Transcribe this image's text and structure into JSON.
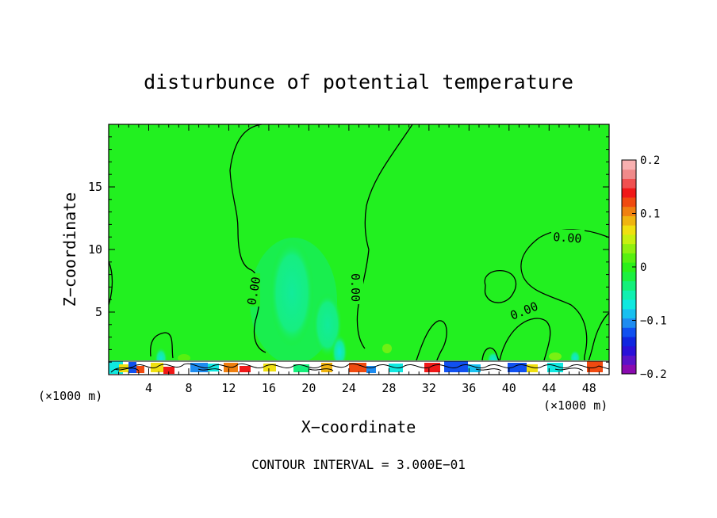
{
  "chart_data": {
    "type": "heatmap",
    "title": "disturbunce of potential temperature",
    "xlabel": "X−coordinate",
    "ylabel": "Z−coordinate",
    "x_unit_left": "(×1000 m)",
    "x_unit_right": "(×1000 m)",
    "xlim": [
      0,
      50
    ],
    "ylim": [
      0,
      20
    ],
    "xticks": [
      4,
      8,
      12,
      16,
      20,
      24,
      28,
      32,
      36,
      40,
      44,
      48
    ],
    "yticks": [
      5,
      10,
      15
    ],
    "footer": "CONTOUR INTERVAL = 3.000E−01",
    "contour_label": "0.00",
    "colorbar": {
      "min": -0.2,
      "max": 0.2,
      "tick_labels": [
        "0.2",
        "0.1",
        "0",
        "−0.1",
        "−0.2"
      ],
      "tick_values": [
        0.2,
        0.1,
        0,
        -0.1,
        -0.2
      ],
      "colors": [
        "#8a0ab0",
        "#5a12c8",
        "#2a10d8",
        "#1026e0",
        "#1050f0",
        "#1e8cf0",
        "#18c0f0",
        "#10e8e0",
        "#10f0b0",
        "#14f07a",
        "#1cf040",
        "#2cf018",
        "#58f010",
        "#90f010",
        "#c8f010",
        "#f0e010",
        "#f0b410",
        "#f08010",
        "#f04a10",
        "#f01818",
        "#f05050",
        "#f08a8a",
        "#f8b0b0"
      ]
    },
    "field_annotations": [
      {
        "label": "0.00",
        "x": 14.2,
        "z": 7.0
      },
      {
        "label": "0.00",
        "x": 24.5,
        "z": 7.3
      },
      {
        "label": "0.00",
        "x": 42.5,
        "z": 4.8
      },
      {
        "label": "0.00",
        "x": 46.0,
        "z": 10.8
      }
    ]
  }
}
